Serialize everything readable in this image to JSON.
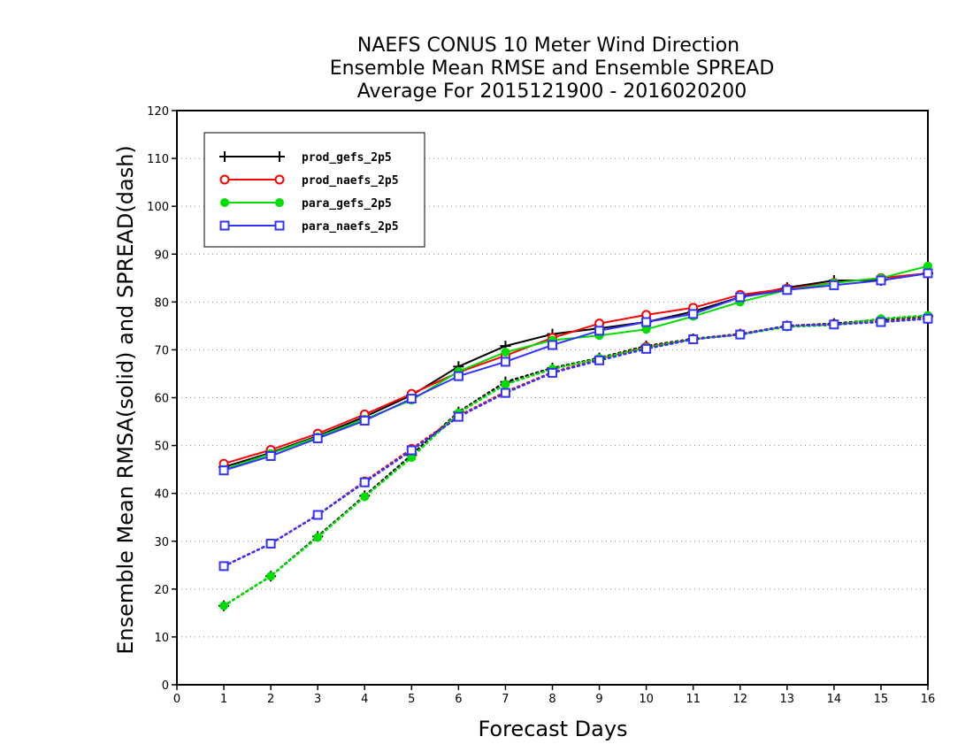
{
  "chart_data": {
    "type": "line",
    "title_lines": [
      "NAEFS CONUS 10 Meter Wind Direction",
      "Ensemble Mean RMSE and Ensemble SPREAD",
      "Average For 2015121900 - 2016020200"
    ],
    "xlabel": "Forecast Days",
    "ylabel": "Ensemble Mean RMSA(solid) and SPREAD(dash)",
    "xlim": [
      0,
      16
    ],
    "ylim": [
      0,
      120
    ],
    "xticks": [
      "0",
      "1",
      "2",
      "3",
      "4",
      "5",
      "6",
      "7",
      "8",
      "9",
      "10",
      "11",
      "12",
      "13",
      "14",
      "15",
      "16"
    ],
    "yticks": [
      "0",
      "10",
      "20",
      "30",
      "40",
      "50",
      "60",
      "70",
      "80",
      "90",
      "100",
      "110",
      "120"
    ],
    "grid": "horizontal dotted",
    "legend_position": "top-left",
    "x": [
      1,
      2,
      3,
      4,
      5,
      6,
      7,
      8,
      9,
      10,
      11,
      12,
      13,
      14,
      15,
      16
    ],
    "series": [
      {
        "name": "prod_gefs_2p5",
        "color": "#000000",
        "marker": "plus",
        "rmse": [
          45.5,
          48.5,
          52,
          56,
          60.5,
          66.5,
          70.8,
          73.3,
          74.5,
          75.8,
          78,
          81,
          83,
          84.5,
          84.5,
          86
        ],
        "spread": [
          16.5,
          22.7,
          31,
          39.5,
          48,
          57,
          63.3,
          66.2,
          68.3,
          70.8,
          72.3,
          73.3,
          75,
          75.5,
          76.3,
          77
        ]
      },
      {
        "name": "prod_naefs_2p5",
        "color": "#ff0000",
        "marker": "circle",
        "rmse": [
          46.2,
          49.1,
          52.5,
          56.5,
          60.8,
          65.3,
          68.8,
          72.5,
          75.5,
          77.3,
          78.8,
          81.5,
          82.8,
          84,
          85,
          86
        ],
        "spread": [
          24.8,
          29.5,
          35.5,
          42.5,
          49.3,
          56.2,
          61.2,
          65.3,
          68,
          70.6,
          72.2,
          73.3,
          75,
          75.4,
          75.9,
          76.6
        ]
      },
      {
        "name": "para_gefs_2p5",
        "color": "#00dd00",
        "marker": "dot",
        "rmse": [
          45,
          48.3,
          51.8,
          55.5,
          59.5,
          65.5,
          69.5,
          72,
          73,
          74.3,
          77,
          80,
          82.5,
          84,
          85,
          87.5
        ],
        "spread": [
          16.5,
          22.7,
          30.8,
          39.3,
          47.5,
          56.8,
          62.8,
          66,
          68.2,
          70.5,
          72.2,
          73.2,
          74.8,
          75.2,
          76.5,
          77.2
        ]
      },
      {
        "name": "para_naefs_2p5",
        "color": "#3333ff",
        "marker": "square",
        "rmse": [
          44.8,
          47.8,
          51.5,
          55.2,
          59.8,
          64.5,
          67.5,
          71,
          74,
          75.8,
          77.5,
          81,
          82.5,
          83.5,
          84.5,
          86
        ],
        "spread": [
          24.8,
          29.5,
          35.5,
          42.3,
          49,
          56,
          61,
          65.2,
          67.8,
          70.2,
          72.2,
          73.2,
          75,
          75.3,
          75.8,
          76.5
        ]
      }
    ]
  }
}
